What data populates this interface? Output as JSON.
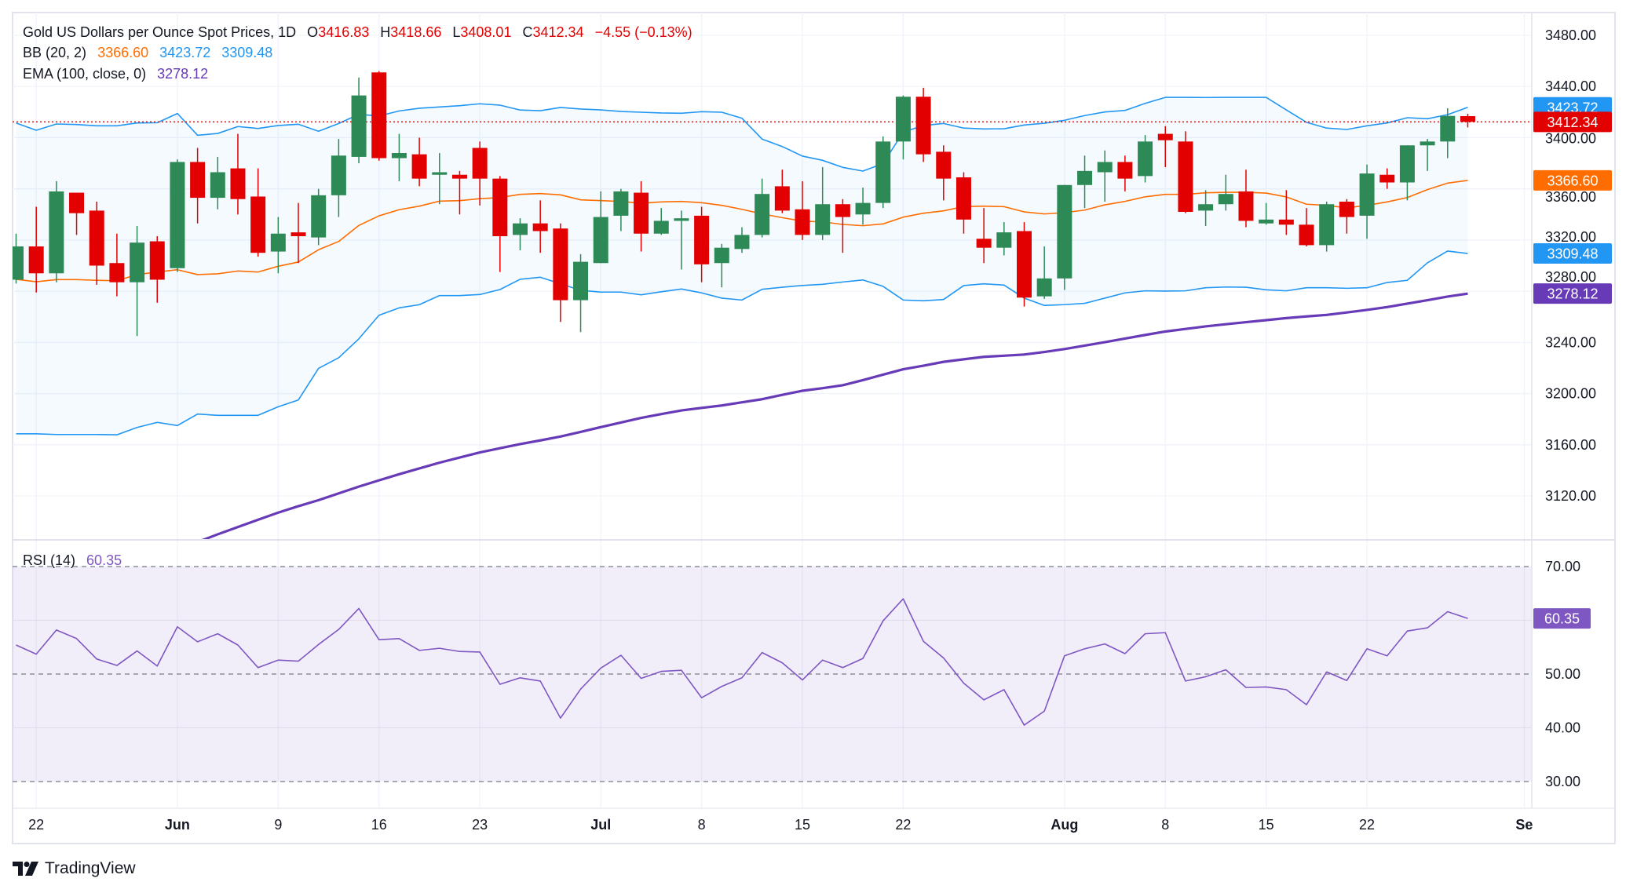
{
  "header": {
    "title": "Gold US Dollars per Ounce Spot Prices, 1D",
    "open_label": "O",
    "open": "3416.83",
    "high_label": "H",
    "high": "3418.66",
    "low_label": "L",
    "low": "3408.01",
    "close_label": "C",
    "close": "3412.34",
    "change": "−4.55 (−0.13%)"
  },
  "bb": {
    "label": "BB (20, 2)",
    "basis": "3366.60",
    "upper": "3423.72",
    "lower": "3309.48"
  },
  "ema": {
    "label": "EMA (100, close, 0)",
    "value": "3278.12"
  },
  "rsi": {
    "label": "RSI (14)",
    "value": "60.35"
  },
  "branding": {
    "logo_text": "TradingView"
  },
  "colors": {
    "up": "#2d8a57",
    "down": "#e30000",
    "bb_basis": "#ff6d00",
    "bb_bands": "#2196f3",
    "ema": "#673ab7",
    "rsi": "#7e57c2",
    "last_price": "#e30000"
  },
  "chart_data": [
    {
      "type": "candlestick",
      "ylim": [
        3095,
        3495
      ],
      "y_ticks": [
        "3480.00",
        "3440.00",
        "3400.00",
        "3360.00",
        "3320.00",
        "3280.00",
        "3240.00",
        "3200.00",
        "3160.00",
        "3120.00"
      ],
      "x_ticks": [
        {
          "label": "22",
          "date": "May 22",
          "bold": false
        },
        {
          "label": "Jun",
          "date": "Jun 2",
          "bold": true
        },
        {
          "label": "9",
          "date": "Jun 9",
          "bold": false
        },
        {
          "label": "16",
          "date": "Jun 16",
          "bold": false
        },
        {
          "label": "23",
          "date": "Jun 23",
          "bold": false
        },
        {
          "label": "Jul",
          "date": "Jul 1",
          "bold": true
        },
        {
          "label": "8",
          "date": "Jul 8",
          "bold": false
        },
        {
          "label": "15",
          "date": "Jul 15",
          "bold": false
        },
        {
          "label": "22",
          "date": "Jul 22",
          "bold": false
        },
        {
          "label": "Aug",
          "date": "Aug 1",
          "bold": true
        },
        {
          "label": "8",
          "date": "Aug 8",
          "bold": false
        },
        {
          "label": "15",
          "date": "Aug 15",
          "bold": false
        },
        {
          "label": "22",
          "date": "Aug 22",
          "bold": false
        },
        {
          "label": "Se",
          "date": "Sep",
          "bold": true
        }
      ],
      "dates": [
        "May 21",
        "May 22",
        "May 23",
        "May 26",
        "May 27",
        "May 28",
        "May 29",
        "May 30",
        "Jun 2",
        "Jun 3",
        "Jun 4",
        "Jun 5",
        "Jun 6",
        "Jun 9",
        "Jun 10",
        "Jun 11",
        "Jun 12",
        "Jun 13",
        "Jun 16",
        "Jun 17",
        "Jun 18",
        "Jun 19",
        "Jun 20",
        "Jun 23",
        "Jun 24",
        "Jun 25",
        "Jun 26",
        "Jun 27",
        "Jun 30",
        "Jul 1",
        "Jul 2",
        "Jul 3",
        "Jul 4",
        "Jul 7",
        "Jul 8",
        "Jul 9",
        "Jul 10",
        "Jul 11",
        "Jul 14",
        "Jul 15",
        "Jul 16",
        "Jul 17",
        "Jul 18",
        "Jul 21",
        "Jul 22",
        "Jul 23",
        "Jul 24",
        "Jul 25",
        "Jul 28",
        "Jul 29",
        "Jul 30",
        "Jul 31",
        "Aug 1",
        "Aug 4",
        "Aug 5",
        "Aug 6",
        "Aug 7",
        "Aug 8",
        "Aug 11",
        "Aug 12",
        "Aug 13",
        "Aug 14",
        "Aug 15",
        "Aug 18",
        "Aug 19",
        "Aug 20",
        "Aug 21",
        "Aug 22",
        "Aug 25",
        "Aug 26",
        "Aug 27",
        "Aug 28",
        "Aug 29"
      ],
      "ohlc": [
        [
          3289,
          3325,
          3286,
          3315
        ],
        [
          3315,
          3346,
          3279,
          3294
        ],
        [
          3294,
          3366,
          3287,
          3358
        ],
        [
          3357,
          3357,
          3324,
          3341
        ],
        [
          3343,
          3350,
          3285,
          3300
        ],
        [
          3302,
          3325,
          3276,
          3287
        ],
        [
          3287,
          3331,
          3245,
          3318
        ],
        [
          3319,
          3323,
          3271,
          3289
        ],
        [
          3298,
          3383,
          3295,
          3381
        ],
        [
          3381,
          3392,
          3333,
          3353
        ],
        [
          3353,
          3385,
          3344,
          3373
        ],
        [
          3376,
          3403,
          3340,
          3352
        ],
        [
          3354,
          3376,
          3307,
          3310
        ],
        [
          3311,
          3338,
          3294,
          3325
        ],
        [
          3326,
          3349,
          3302,
          3323
        ],
        [
          3322,
          3360,
          3316,
          3355
        ],
        [
          3355,
          3399,
          3338,
          3386
        ],
        [
          3385,
          3447,
          3380,
          3433
        ],
        [
          3451,
          3452,
          3382,
          3384
        ],
        [
          3384,
          3403,
          3366,
          3388
        ],
        [
          3387,
          3400,
          3362,
          3368
        ],
        [
          3371,
          3388,
          3348,
          3373
        ],
        [
          3371,
          3374,
          3340,
          3368
        ],
        [
          3392,
          3397,
          3347,
          3368
        ],
        [
          3368,
          3370,
          3295,
          3323
        ],
        [
          3324,
          3337,
          3312,
          3333
        ],
        [
          3333,
          3351,
          3310,
          3327
        ],
        [
          3329,
          3333,
          3256,
          3273
        ],
        [
          3273,
          3309,
          3248,
          3303
        ],
        [
          3302,
          3358,
          3302,
          3338
        ],
        [
          3339,
          3360,
          3327,
          3358
        ],
        [
          3357,
          3366,
          3311,
          3325
        ],
        [
          3325,
          3345,
          3324,
          3335
        ],
        [
          3335,
          3343,
          3297,
          3337
        ],
        [
          3339,
          3346,
          3287,
          3301
        ],
        [
          3302,
          3317,
          3283,
          3314
        ],
        [
          3313,
          3330,
          3310,
          3324
        ],
        [
          3324,
          3368,
          3322,
          3356
        ],
        [
          3362,
          3375,
          3341,
          3343
        ],
        [
          3344,
          3366,
          3320,
          3324
        ],
        [
          3324,
          3377,
          3320,
          3348
        ],
        [
          3348,
          3352,
          3310,
          3338
        ],
        [
          3340,
          3361,
          3332,
          3349
        ],
        [
          3349,
          3401,
          3345,
          3397
        ],
        [
          3397,
          3433,
          3383,
          3432
        ],
        [
          3432,
          3439,
          3381,
          3387
        ],
        [
          3389,
          3394,
          3351,
          3368
        ],
        [
          3369,
          3373,
          3325,
          3336
        ],
        [
          3321,
          3345,
          3302,
          3314
        ],
        [
          3314,
          3334,
          3308,
          3326
        ],
        [
          3327,
          3334,
          3268,
          3275
        ],
        [
          3276,
          3315,
          3274,
          3290
        ],
        [
          3290,
          3363,
          3281,
          3363
        ],
        [
          3363,
          3386,
          3345,
          3374
        ],
        [
          3373,
          3390,
          3350,
          3381
        ],
        [
          3381,
          3386,
          3358,
          3368
        ],
        [
          3370,
          3402,
          3365,
          3397
        ],
        [
          3403,
          3409,
          3377,
          3398
        ],
        [
          3397,
          3405,
          3341,
          3342
        ],
        [
          3343,
          3359,
          3331,
          3348
        ],
        [
          3348,
          3371,
          3343,
          3356
        ],
        [
          3358,
          3375,
          3330,
          3335
        ],
        [
          3333,
          3349,
          3332,
          3336
        ],
        [
          3336,
          3359,
          3324,
          3332
        ],
        [
          3332,
          3345,
          3315,
          3316
        ],
        [
          3316,
          3350,
          3311,
          3348
        ],
        [
          3350,
          3352,
          3325,
          3338
        ],
        [
          3339,
          3379,
          3321,
          3372
        ],
        [
          3371,
          3376,
          3360,
          3365
        ],
        [
          3365,
          3394,
          3351,
          3394
        ],
        [
          3394,
          3399,
          3374,
          3397
        ],
        [
          3397,
          3423,
          3384,
          3417
        ],
        [
          3416.83,
          3418.66,
          3408.01,
          3412.34
        ]
      ],
      "bb_upper": [
        3411.5,
        3405.8,
        3410.7,
        3410.3,
        3409.3,
        3409.3,
        3411.5,
        3411.7,
        3418.9,
        3401.9,
        3403.3,
        3408.7,
        3407.2,
        3409.5,
        3410.5,
        3405.0,
        3411.1,
        3418.2,
        3417.0,
        3420.9,
        3423.0,
        3424.0,
        3425.0,
        3426.5,
        3425.4,
        3421.6,
        3421.1,
        3423.6,
        3422.4,
        3421.7,
        3420.5,
        3419.9,
        3419.3,
        3419.1,
        3420.3,
        3419.9,
        3415.2,
        3398.9,
        3393.1,
        3385.6,
        3382.3,
        3376.8,
        3373.9,
        3379.8,
        3404.4,
        3409.5,
        3411.1,
        3407.5,
        3406.8,
        3407.0,
        3409.9,
        3411.3,
        3413.6,
        3417.3,
        3420.1,
        3421.3,
        3426.8,
        3431.5,
        3431.5,
        3431.4,
        3431.5,
        3431.5,
        3431.5,
        3421.7,
        3412.0,
        3407.5,
        3406.4,
        3409.3,
        3411.5,
        3415.6,
        3414.8,
        3418.0,
        3423.72
      ],
      "bb_basis": [
        3289.3,
        3287.4,
        3289.1,
        3289.1,
        3288.5,
        3288.2,
        3293.0,
        3295.0,
        3296.8,
        3293.0,
        3293.6,
        3295.8,
        3295.0,
        3299.5,
        3302.8,
        3312.4,
        3318.9,
        3331.4,
        3338.9,
        3343.7,
        3346.5,
        3350.4,
        3350.8,
        3352.3,
        3353.2,
        3355.7,
        3356.3,
        3355.3,
        3351.4,
        3350.8,
        3350.2,
        3348.8,
        3349.8,
        3350.2,
        3349.2,
        3347.1,
        3344.0,
        3340.4,
        3337.5,
        3334.8,
        3334.2,
        3332.2,
        3331.2,
        3332.6,
        3337.9,
        3341.0,
        3342.8,
        3346.1,
        3346.5,
        3346.1,
        3342.0,
        3340.4,
        3341.4,
        3343.4,
        3347.5,
        3350.2,
        3353.8,
        3355.7,
        3355.7,
        3356.9,
        3357.3,
        3357.3,
        3356.7,
        3353.7,
        3348.0,
        3347.1,
        3345.1,
        3347.1,
        3349.8,
        3353.2,
        3359.4,
        3364.5,
        3366.6
      ],
      "bb_lower": [
        3168.6,
        3168.6,
        3168,
        3168,
        3168,
        3167.8,
        3173.5,
        3177.5,
        3175,
        3184,
        3183,
        3183,
        3183,
        3189.7,
        3195,
        3219.7,
        3228,
        3242.8,
        3261.2,
        3267.0,
        3269.5,
        3276.6,
        3276.6,
        3277.4,
        3281.3,
        3289.3,
        3290.9,
        3285.8,
        3280.7,
        3279.3,
        3279.3,
        3277.2,
        3279.6,
        3281.7,
        3278.7,
        3274.6,
        3273.1,
        3281.5,
        3283.1,
        3284.5,
        3285.4,
        3287.2,
        3288.8,
        3283.8,
        3273.1,
        3272.5,
        3273.5,
        3284.4,
        3285.8,
        3284.8,
        3274.6,
        3268.9,
        3269.5,
        3270.5,
        3274.6,
        3278.7,
        3280.3,
        3280.1,
        3280.3,
        3282.7,
        3283.3,
        3283.1,
        3281.1,
        3280.3,
        3282.7,
        3282.7,
        3282.3,
        3282.7,
        3286.8,
        3288.5,
        3302.2,
        3311.4,
        3309.48
      ],
      "ema100": [
        null,
        null,
        null,
        null,
        null,
        null,
        null,
        null,
        null,
        3084,
        3090,
        3095.7,
        3101.4,
        3107,
        3112,
        3116.7,
        3122,
        3127.3,
        3132.2,
        3137,
        3141.5,
        3146,
        3150,
        3154,
        3157.3,
        3160.5,
        3163.4,
        3166.4,
        3170,
        3173.8,
        3177.4,
        3181,
        3184,
        3186.8,
        3188.8,
        3190.7,
        3193.2,
        3195.6,
        3199,
        3202.2,
        3204.2,
        3206.5,
        3210.5,
        3214.8,
        3219,
        3221.8,
        3224.8,
        3226.8,
        3228.7,
        3229.6,
        3230.5,
        3232.5,
        3234.8,
        3237.5,
        3240.2,
        3243,
        3245.8,
        3248.5,
        3250.5,
        3252.5,
        3254.2,
        3255.8,
        3257.4,
        3259,
        3260.3,
        3261.5,
        3263.4,
        3265.4,
        3267.6,
        3270.3,
        3273,
        3275.8,
        3278.12
      ],
      "last_price": 3412.34
    },
    {
      "type": "line",
      "ylim": [
        30,
        70
      ],
      "y_ticks": [
        "70.00",
        "50.00",
        "40.00",
        "30.00"
      ],
      "bands": {
        "upper": 70,
        "middle": 50,
        "lower": 30
      },
      "values": [
        55.4,
        53.7,
        58.2,
        56.6,
        52.8,
        51.6,
        54.3,
        51.5,
        58.8,
        56.0,
        57.5,
        55.4,
        51.2,
        52.6,
        52.4,
        55.5,
        58.3,
        62.2,
        56.4,
        56.6,
        54.4,
        54.8,
        54.2,
        54.1,
        48.1,
        49.3,
        48.7,
        41.8,
        47.2,
        51.1,
        53.5,
        49.2,
        50.5,
        50.7,
        45.6,
        47.7,
        49.3,
        54.0,
        52.1,
        48.9,
        52.6,
        51.2,
        52.9,
        59.9,
        64.0,
        56.1,
        53.0,
        48.3,
        45.2,
        47.1,
        40.5,
        43.1,
        53.4,
        54.7,
        55.6,
        53.8,
        57.5,
        57.7,
        48.7,
        49.5,
        50.8,
        47.5,
        47.6,
        47.1,
        44.3,
        50.4,
        48.8,
        54.7,
        53.4,
        58.0,
        58.6,
        61.6,
        60.35
      ]
    }
  ]
}
